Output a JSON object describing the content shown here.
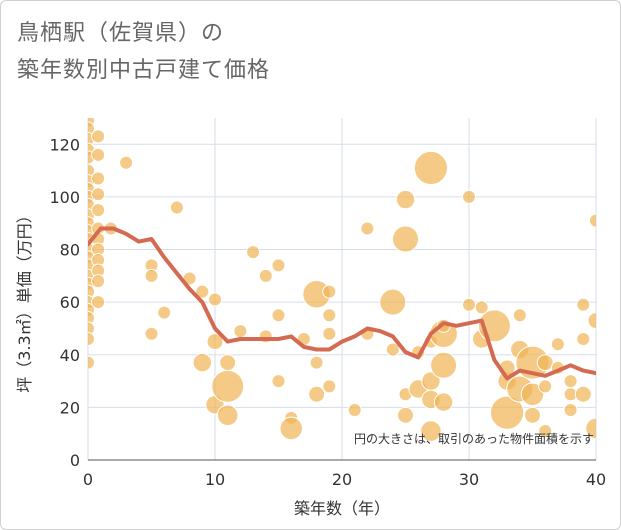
{
  "title_line1": "鳥栖駅（佐賀県）の",
  "title_line2": "築年数別中古戸建て価格",
  "chart_data": {
    "type": "scatter",
    "title": "鳥栖駅（佐賀県）の築年数別中古戸建て価格",
    "xlabel": "築年数（年）",
    "ylabel": "坪（3.3㎡）単価（万円）",
    "xlim": [
      0,
      40
    ],
    "ylim": [
      0,
      130
    ],
    "xticks": [
      "0",
      "10",
      "20",
      "30",
      "40"
    ],
    "yticks": [
      "0",
      "20",
      "40",
      "60",
      "80",
      "100",
      "120"
    ],
    "grid": true,
    "note": "円の大きさは、取引のあった物件面積を示す",
    "colors": {
      "bubble": "#f0b557",
      "line": "#d46a52",
      "grid": "#d5dee8"
    },
    "bubbles": [
      {
        "x": 0,
        "y": 129,
        "s": 1
      },
      {
        "x": 0,
        "y": 126,
        "s": 1
      },
      {
        "x": 0,
        "y": 122,
        "s": 1
      },
      {
        "x": 0,
        "y": 118,
        "s": 1
      },
      {
        "x": 0,
        "y": 115,
        "s": 1
      },
      {
        "x": 0,
        "y": 110,
        "s": 1
      },
      {
        "x": 0,
        "y": 106,
        "s": 1
      },
      {
        "x": 0,
        "y": 103,
        "s": 1
      },
      {
        "x": 0,
        "y": 100,
        "s": 1
      },
      {
        "x": 0,
        "y": 97,
        "s": 1
      },
      {
        "x": 0,
        "y": 93,
        "s": 1
      },
      {
        "x": 0,
        "y": 90,
        "s": 1
      },
      {
        "x": 0,
        "y": 87,
        "s": 1
      },
      {
        "x": 0,
        "y": 84,
        "s": 1
      },
      {
        "x": 0,
        "y": 80,
        "s": 1
      },
      {
        "x": 0,
        "y": 77,
        "s": 1
      },
      {
        "x": 0,
        "y": 74,
        "s": 1
      },
      {
        "x": 0,
        "y": 70,
        "s": 1
      },
      {
        "x": 0,
        "y": 67,
        "s": 1
      },
      {
        "x": 0,
        "y": 64,
        "s": 1
      },
      {
        "x": 0,
        "y": 60,
        "s": 1
      },
      {
        "x": 0,
        "y": 57,
        "s": 1
      },
      {
        "x": 0,
        "y": 54,
        "s": 1
      },
      {
        "x": 0,
        "y": 50,
        "s": 1
      },
      {
        "x": 0,
        "y": 46,
        "s": 1
      },
      {
        "x": 0,
        "y": 37,
        "s": 1
      },
      {
        "x": 0.8,
        "y": 123,
        "s": 1
      },
      {
        "x": 0.8,
        "y": 116,
        "s": 1
      },
      {
        "x": 0.8,
        "y": 107,
        "s": 1
      },
      {
        "x": 0.8,
        "y": 101,
        "s": 1
      },
      {
        "x": 0.8,
        "y": 95,
        "s": 1
      },
      {
        "x": 0.8,
        "y": 88,
        "s": 1
      },
      {
        "x": 0.8,
        "y": 84,
        "s": 1
      },
      {
        "x": 0.8,
        "y": 80,
        "s": 1
      },
      {
        "x": 0.8,
        "y": 76,
        "s": 1
      },
      {
        "x": 0.8,
        "y": 72,
        "s": 1
      },
      {
        "x": 0.8,
        "y": 68,
        "s": 1
      },
      {
        "x": 0.8,
        "y": 60,
        "s": 1
      },
      {
        "x": 1.8,
        "y": 88,
        "s": 1
      },
      {
        "x": 3,
        "y": 113,
        "s": 1
      },
      {
        "x": 5,
        "y": 74,
        "s": 1
      },
      {
        "x": 5,
        "y": 70,
        "s": 1
      },
      {
        "x": 5,
        "y": 48,
        "s": 1
      },
      {
        "x": 6,
        "y": 56,
        "s": 1
      },
      {
        "x": 7,
        "y": 96,
        "s": 1
      },
      {
        "x": 8,
        "y": 69,
        "s": 1
      },
      {
        "x": 9,
        "y": 64,
        "s": 1
      },
      {
        "x": 10,
        "y": 61,
        "s": 1
      },
      {
        "x": 10,
        "y": 45,
        "s": 1.5
      },
      {
        "x": 10,
        "y": 21,
        "s": 2
      },
      {
        "x": 9,
        "y": 37,
        "s": 2
      },
      {
        "x": 11,
        "y": 37,
        "s": 1.5
      },
      {
        "x": 11,
        "y": 17,
        "s": 2.5
      },
      {
        "x": 11,
        "y": 28,
        "s": 6
      },
      {
        "x": 12,
        "y": 49,
        "s": 1
      },
      {
        "x": 13,
        "y": 79,
        "s": 1
      },
      {
        "x": 14,
        "y": 70,
        "s": 1
      },
      {
        "x": 14,
        "y": 47,
        "s": 1
      },
      {
        "x": 15,
        "y": 74,
        "s": 1
      },
      {
        "x": 15,
        "y": 55,
        "s": 1
      },
      {
        "x": 15,
        "y": 30,
        "s": 1
      },
      {
        "x": 16,
        "y": 16,
        "s": 1
      },
      {
        "x": 16,
        "y": 12,
        "s": 3
      },
      {
        "x": 17,
        "y": 46,
        "s": 1
      },
      {
        "x": 18,
        "y": 63,
        "s": 4.5
      },
      {
        "x": 18,
        "y": 37,
        "s": 1
      },
      {
        "x": 18,
        "y": 25,
        "s": 1.5
      },
      {
        "x": 19,
        "y": 64,
        "s": 1
      },
      {
        "x": 19,
        "y": 55,
        "s": 1
      },
      {
        "x": 19,
        "y": 48,
        "s": 1
      },
      {
        "x": 19,
        "y": 28,
        "s": 1
      },
      {
        "x": 21,
        "y": 19,
        "s": 1
      },
      {
        "x": 22,
        "y": 88,
        "s": 1
      },
      {
        "x": 22,
        "y": 48,
        "s": 1
      },
      {
        "x": 24,
        "y": 60,
        "s": 4
      },
      {
        "x": 24,
        "y": 42,
        "s": 1
      },
      {
        "x": 25,
        "y": 99,
        "s": 2
      },
      {
        "x": 25,
        "y": 84,
        "s": 4
      },
      {
        "x": 25,
        "y": 25,
        "s": 1
      },
      {
        "x": 25,
        "y": 17,
        "s": 1.5
      },
      {
        "x": 26,
        "y": 27,
        "s": 2
      },
      {
        "x": 26,
        "y": 41,
        "s": 1
      },
      {
        "x": 27,
        "y": 111,
        "s": 6.5
      },
      {
        "x": 27,
        "y": 45,
        "s": 1
      },
      {
        "x": 27,
        "y": 30,
        "s": 2
      },
      {
        "x": 27,
        "y": 23,
        "s": 2
      },
      {
        "x": 27,
        "y": 11,
        "s": 2.5
      },
      {
        "x": 28,
        "y": 48,
        "s": 4.5
      },
      {
        "x": 28,
        "y": 51,
        "s": 1
      },
      {
        "x": 28,
        "y": 36,
        "s": 4
      },
      {
        "x": 28,
        "y": 22,
        "s": 2
      },
      {
        "x": 30,
        "y": 100,
        "s": 1
      },
      {
        "x": 30,
        "y": 59,
        "s": 1
      },
      {
        "x": 31,
        "y": 58,
        "s": 1
      },
      {
        "x": 31,
        "y": 46,
        "s": 2
      },
      {
        "x": 32,
        "y": 51,
        "s": 6
      },
      {
        "x": 33,
        "y": 18,
        "s": 6.5
      },
      {
        "x": 33,
        "y": 30,
        "s": 2
      },
      {
        "x": 33,
        "y": 35,
        "s": 1.5
      },
      {
        "x": 34,
        "y": 27,
        "s": 4
      },
      {
        "x": 34,
        "y": 55,
        "s": 1
      },
      {
        "x": 34,
        "y": 42,
        "s": 2
      },
      {
        "x": 35,
        "y": 37,
        "s": 6.5
      },
      {
        "x": 35,
        "y": 25,
        "s": 3
      },
      {
        "x": 35,
        "y": 17,
        "s": 1.5
      },
      {
        "x": 36,
        "y": 37,
        "s": 1.5
      },
      {
        "x": 36,
        "y": 11,
        "s": 1
      },
      {
        "x": 36,
        "y": 28,
        "s": 1
      },
      {
        "x": 37,
        "y": 44,
        "s": 1
      },
      {
        "x": 37,
        "y": 35,
        "s": 1
      },
      {
        "x": 38,
        "y": 25,
        "s": 1
      },
      {
        "x": 38,
        "y": 19,
        "s": 1
      },
      {
        "x": 38,
        "y": 30,
        "s": 1
      },
      {
        "x": 39,
        "y": 59,
        "s": 1
      },
      {
        "x": 39,
        "y": 46,
        "s": 1
      },
      {
        "x": 39,
        "y": 25,
        "s": 1.5
      },
      {
        "x": 40,
        "y": 91,
        "s": 1
      },
      {
        "x": 40,
        "y": 53,
        "s": 1.5
      },
      {
        "x": 40,
        "y": 12,
        "s": 2.5
      }
    ],
    "trend": [
      {
        "x": 0,
        "y": 82
      },
      {
        "x": 1,
        "y": 88
      },
      {
        "x": 2,
        "y": 88
      },
      {
        "x": 3,
        "y": 86
      },
      {
        "x": 4,
        "y": 83
      },
      {
        "x": 5,
        "y": 84
      },
      {
        "x": 6,
        "y": 77
      },
      {
        "x": 7,
        "y": 71
      },
      {
        "x": 8,
        "y": 65
      },
      {
        "x": 9,
        "y": 60
      },
      {
        "x": 10,
        "y": 50
      },
      {
        "x": 11,
        "y": 45
      },
      {
        "x": 12,
        "y": 46
      },
      {
        "x": 13,
        "y": 46
      },
      {
        "x": 14,
        "y": 46
      },
      {
        "x": 15,
        "y": 46
      },
      {
        "x": 16,
        "y": 47
      },
      {
        "x": 17,
        "y": 43
      },
      {
        "x": 18,
        "y": 42
      },
      {
        "x": 19,
        "y": 42
      },
      {
        "x": 20,
        "y": 45
      },
      {
        "x": 21,
        "y": 47
      },
      {
        "x": 22,
        "y": 50
      },
      {
        "x": 23,
        "y": 49
      },
      {
        "x": 24,
        "y": 47
      },
      {
        "x": 25,
        "y": 41
      },
      {
        "x": 26,
        "y": 39
      },
      {
        "x": 27,
        "y": 48
      },
      {
        "x": 28,
        "y": 52
      },
      {
        "x": 29,
        "y": 51
      },
      {
        "x": 30,
        "y": 52
      },
      {
        "x": 31,
        "y": 53
      },
      {
        "x": 32,
        "y": 38
      },
      {
        "x": 33,
        "y": 31
      },
      {
        "x": 34,
        "y": 34
      },
      {
        "x": 35,
        "y": 33
      },
      {
        "x": 36,
        "y": 32
      },
      {
        "x": 37,
        "y": 34
      },
      {
        "x": 38,
        "y": 36
      },
      {
        "x": 39,
        "y": 34
      },
      {
        "x": 40,
        "y": 33
      }
    ]
  }
}
